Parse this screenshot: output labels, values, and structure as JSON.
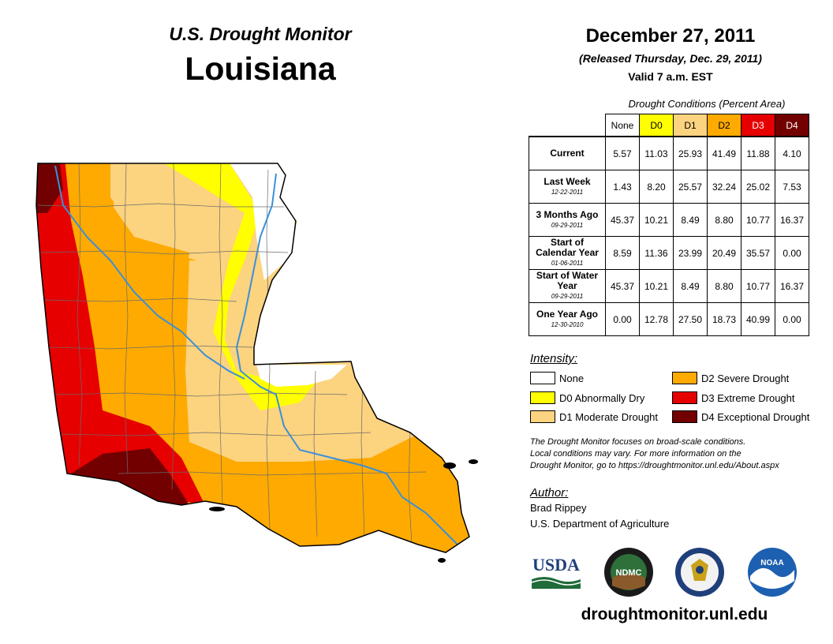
{
  "header": {
    "brand": "U.S. Drought Monitor",
    "state": "Louisiana",
    "date": "December 27, 2011",
    "released": "(Released Thursday, Dec. 29, 2011)",
    "valid": "Valid 7 a.m. EST"
  },
  "table": {
    "caption": "Drought Conditions (Percent Area)",
    "columns": [
      "None",
      "D0",
      "D1",
      "D2",
      "D3",
      "D4"
    ],
    "rows": [
      {
        "label": "Current",
        "date": "",
        "values": [
          "5.57",
          "11.03",
          "25.93",
          "41.49",
          "11.88",
          "4.10"
        ]
      },
      {
        "label": "Last Week",
        "date": "12-22-2011",
        "values": [
          "1.43",
          "8.20",
          "25.57",
          "32.24",
          "25.02",
          "7.53"
        ]
      },
      {
        "label": "3 Months Ago",
        "date": "09-29-2011",
        "values": [
          "45.37",
          "10.21",
          "8.49",
          "8.80",
          "10.77",
          "16.37"
        ]
      },
      {
        "label": "Start of Calendar Year",
        "date": "01-06-2011",
        "values": [
          "8.59",
          "11.36",
          "23.99",
          "20.49",
          "35.57",
          "0.00"
        ]
      },
      {
        "label": "Start of Water Year",
        "date": "09-29-2011",
        "values": [
          "45.37",
          "10.21",
          "8.49",
          "8.80",
          "10.77",
          "16.37"
        ]
      },
      {
        "label": "One Year Ago",
        "date": "12-30-2010",
        "values": [
          "0.00",
          "12.78",
          "27.50",
          "18.73",
          "40.99",
          "0.00"
        ]
      }
    ]
  },
  "legend": {
    "title": "Intensity:",
    "items": [
      {
        "label": "None",
        "color": "#ffffff"
      },
      {
        "label": "D0 Abnormally Dry",
        "color": "#ffff00"
      },
      {
        "label": "D1 Moderate Drought",
        "color": "#fcd37f"
      },
      {
        "label": "D2 Severe Drought",
        "color": "#ffaa00"
      },
      {
        "label": "D3 Extreme Drought",
        "color": "#e60000"
      },
      {
        "label": "D4 Exceptional Drought",
        "color": "#730000"
      }
    ]
  },
  "note": {
    "line1": "The Drought Monitor focuses on broad-scale conditions.",
    "line2": "Local conditions may vary. For more information on the",
    "line3": "Drought Monitor, go to https://droughtmonitor.unl.edu/About.aspx"
  },
  "author": {
    "title": "Author:",
    "name": "Brad Rippey",
    "org": "U.S. Department of Agriculture"
  },
  "logos": {
    "usda": "USDA",
    "ndmc": "NDMC",
    "noaa": "NOAA"
  },
  "footer": {
    "url": "droughtmonitor.unl.edu"
  }
}
